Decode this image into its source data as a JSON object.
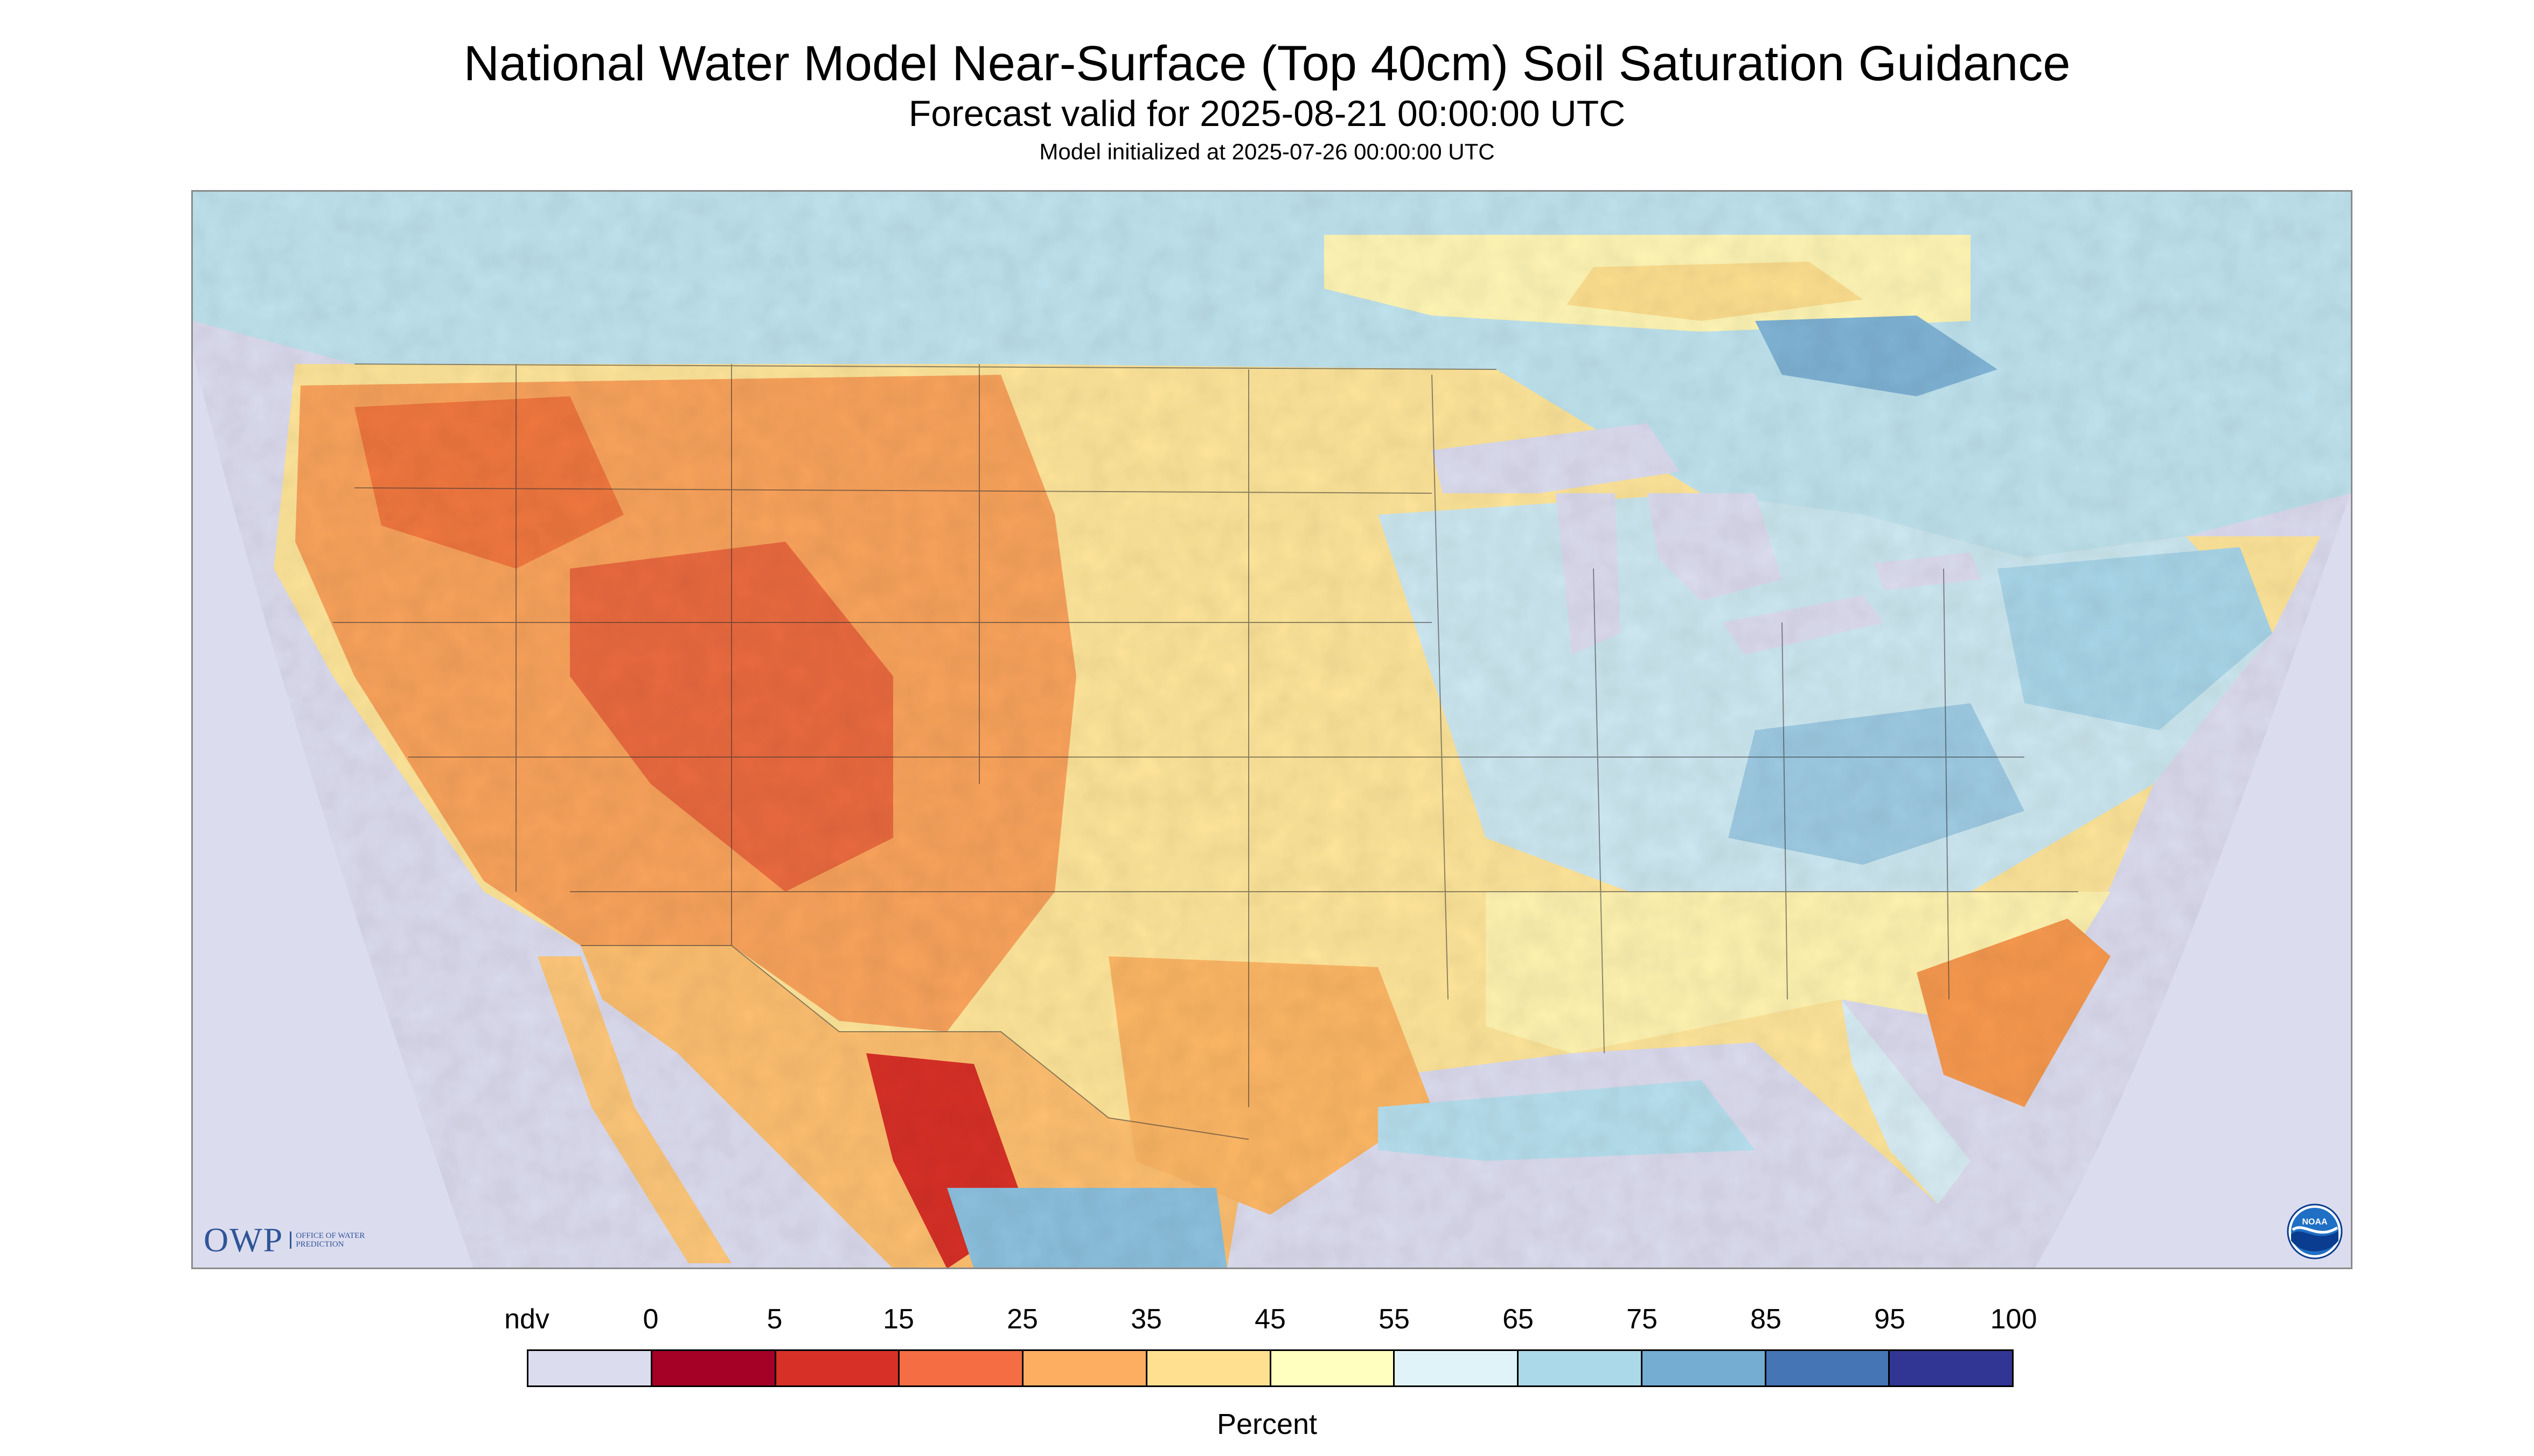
{
  "header": {
    "title": "National Water Model Near-Surface (Top 40cm) Soil Saturation Guidance",
    "subtitle": "Forecast valid for 2025-08-21 00:00:00 UTC",
    "init_line": "Model initialized at 2025-07-26 00:00:00 UTC"
  },
  "map": {
    "region": "Contiguous United States",
    "background_color": "#dcdcef",
    "logos": {
      "owp": {
        "text": "OWP",
        "subtitle": "OFFICE OF WATER PREDICTION"
      },
      "noaa": {
        "text": "NOAA",
        "icon": "noaa-emblem-icon"
      }
    }
  },
  "legend": {
    "units": "Percent",
    "labels": [
      "ndv",
      "0",
      "5",
      "15",
      "25",
      "35",
      "45",
      "55",
      "65",
      "75",
      "85",
      "95",
      "100"
    ],
    "colors": [
      "#dcdcef",
      "#a50026",
      "#d73027",
      "#f46d43",
      "#fdae61",
      "#fee090",
      "#ffffbf",
      "#e0f3f8",
      "#abd9e9",
      "#74add1",
      "#4575b4",
      "#313695"
    ]
  }
}
